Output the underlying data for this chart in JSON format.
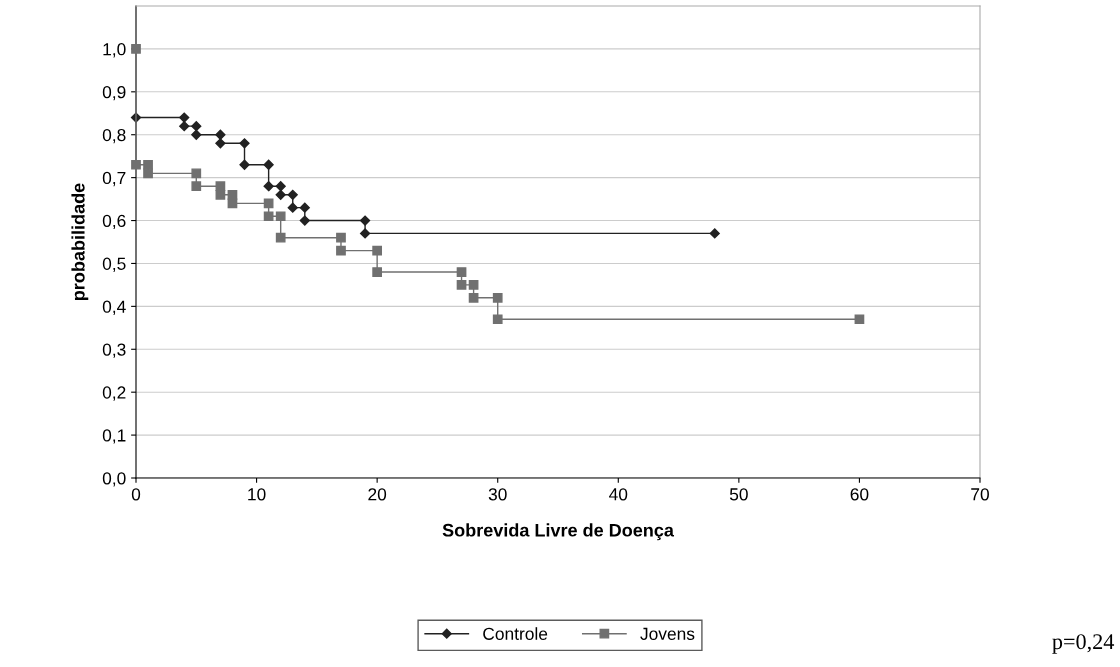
{
  "chart_data": {
    "type": "line",
    "xlabel": "Sobrevida Livre de Doença",
    "ylabel": "probabilidade",
    "series": [
      {
        "name": "Controle",
        "color": "#222222",
        "marker": "diamond",
        "x": [
          0,
          4,
          4,
          5,
          5,
          7,
          7,
          9,
          9,
          11,
          11,
          12,
          12,
          13,
          13,
          14,
          14,
          19,
          19,
          48
        ],
        "values": [
          0.84,
          0.84,
          0.82,
          0.82,
          0.8,
          0.8,
          0.78,
          0.78,
          0.73,
          0.73,
          0.68,
          0.68,
          0.66,
          0.66,
          0.63,
          0.63,
          0.6,
          0.6,
          0.57,
          0.57
        ]
      },
      {
        "name": "Jovens",
        "color": "#707070",
        "marker": "square",
        "x": [
          0,
          0,
          1,
          1,
          5,
          5,
          7,
          7,
          8,
          8,
          11,
          11,
          12,
          12,
          17,
          17,
          20,
          20,
          27,
          27,
          28,
          28,
          30,
          30,
          60
        ],
        "values": [
          1.0,
          0.73,
          0.73,
          0.71,
          0.71,
          0.68,
          0.68,
          0.66,
          0.66,
          0.64,
          0.64,
          0.61,
          0.61,
          0.56,
          0.56,
          0.53,
          0.53,
          0.48,
          0.48,
          0.45,
          0.45,
          0.42,
          0.42,
          0.37,
          0.37
        ]
      }
    ],
    "xlim": [
      0,
      70
    ],
    "xticks": [
      0,
      10,
      20,
      30,
      40,
      50,
      60,
      70
    ],
    "ylim": [
      0,
      1.1
    ],
    "yticks": [
      {
        "value": 0,
        "label": "0,0"
      },
      {
        "value": 0.1,
        "label": "0,1"
      },
      {
        "value": 0.2,
        "label": "0,2"
      },
      {
        "value": 0.3,
        "label": "0,3"
      },
      {
        "value": 0.4,
        "label": "0,4"
      },
      {
        "value": 0.5,
        "label": "0,5"
      },
      {
        "value": 0.6,
        "label": "0,6"
      },
      {
        "value": 0.7,
        "label": "0,7"
      },
      {
        "value": 0.8,
        "label": "0,8"
      },
      {
        "value": 0.9,
        "label": "0,9"
      },
      {
        "value": 1.0,
        "label": "1,0"
      }
    ],
    "grid": "y",
    "legend": "bottom",
    "line_style": "solid",
    "annotations": [
      "p=0,24"
    ]
  }
}
